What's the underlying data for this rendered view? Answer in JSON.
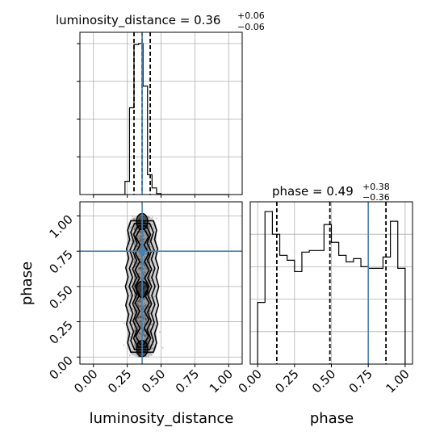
{
  "chart_data": [
    {
      "type": "histogram",
      "panel": "luminosity_distance-1d",
      "title": {
        "param": "luminosity_distance",
        "median": "0.36",
        "plus": "+0.06",
        "minus": "−0.06"
      },
      "bin_edges": [
        0.0,
        0.0333,
        0.0667,
        0.1,
        0.1333,
        0.1667,
        0.2,
        0.2333,
        0.2667,
        0.3,
        0.3333,
        0.3667,
        0.4,
        0.4333,
        0.4667,
        0.5,
        0.5333,
        0.5667,
        0.6,
        0.6333,
        0.6667,
        0.7,
        0.7333,
        0.7667,
        0.8,
        0.8333,
        0.8667,
        0.9,
        0.9333,
        0.9667,
        1.0
      ],
      "values": [
        0,
        0,
        0,
        0,
        0,
        0,
        0,
        1.4,
        9.2,
        15.9,
        16.0,
        11.5,
        2.1,
        0.7,
        0.1,
        0,
        0,
        0,
        0,
        0,
        0,
        0,
        0,
        0,
        0,
        0,
        0,
        0,
        0,
        0
      ],
      "quantiles": [
        0.3,
        0.36,
        0.42
      ],
      "truth": 0.36,
      "xlim": [
        -0.1,
        1.1
      ],
      "ylim": [
        0,
        17.2
      ]
    },
    {
      "type": "histogram",
      "panel": "phase-1d",
      "title": {
        "param": "phase",
        "median": "0.49",
        "plus": "+0.38",
        "minus": "−0.36"
      },
      "xlabel": "phase",
      "bin_edges": [
        0.0,
        0.05,
        0.1,
        0.15,
        0.2,
        0.25,
        0.3,
        0.35,
        0.4,
        0.45,
        0.5,
        0.55,
        0.6,
        0.65,
        0.7,
        0.75,
        0.8,
        0.85,
        0.9,
        0.95,
        1.0
      ],
      "values": [
        0.38,
        0.94,
        0.8,
        0.67,
        0.64,
        0.57,
        0.69,
        0.7,
        0.7,
        0.86,
        0.75,
        0.67,
        0.63,
        0.65,
        0.6,
        0.59,
        0.59,
        0.66,
        0.88,
        0.59
      ],
      "quantiles": [
        0.13,
        0.49,
        0.87
      ],
      "truth": 0.75,
      "xticks": [
        "0.00",
        "0.25",
        "0.50",
        "0.75",
        "1.00"
      ],
      "xlim": [
        -0.05,
        1.05
      ],
      "ylim": [
        0,
        1.0
      ]
    },
    {
      "type": "scatter",
      "panel": "phase-vs-luminosity_distance-2d",
      "xlabel": "luminosity_distance",
      "ylabel": "phase",
      "xticks": [
        "0.00",
        "0.25",
        "0.50",
        "0.75",
        "1.00"
      ],
      "yticks": [
        "0.00",
        "0.25",
        "0.50",
        "0.75",
        "1.00"
      ],
      "xlim": [
        -0.1,
        1.1
      ],
      "ylim": [
        -0.05,
        1.1
      ],
      "truth": {
        "x": 0.36,
        "y": 0.75
      },
      "distribution": {
        "x_center": 0.36,
        "x_sd": 0.04,
        "y_range": [
          0.0,
          1.0
        ]
      },
      "density_peaks_y": [
        0.06,
        0.48,
        0.96
      ]
    }
  ],
  "colors": {
    "truth": "#4682b4",
    "hist": "#000000",
    "grid": "#b0b0b0"
  }
}
